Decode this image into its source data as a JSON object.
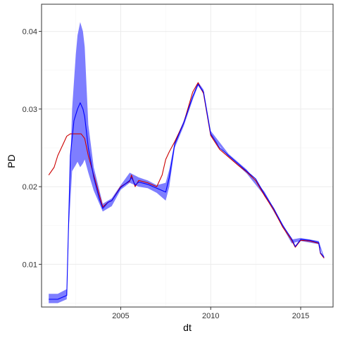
{
  "chart_data": {
    "type": "line",
    "title": "",
    "xlabel": "dt",
    "ylabel": "PD",
    "xlim": [
      2000.6,
      2016.8
    ],
    "ylim": [
      0.0045,
      0.0435
    ],
    "x_ticks": [
      2005,
      2010,
      2015
    ],
    "x_tick_labels": [
      "2005",
      "2010",
      "2015"
    ],
    "y_ticks": [
      0.01,
      0.02,
      0.03,
      0.04
    ],
    "y_tick_labels": [
      "0.01",
      "0.02",
      "0.03",
      "0.04"
    ],
    "grid": true,
    "legend": "none",
    "colors": {
      "band": "#7777ff",
      "estimate": "#0000ff",
      "reference": "#cc0000",
      "panel_border": "#333333",
      "grid_major": "#ebebeb",
      "grid_minor": "#f5f5f5"
    },
    "band": {
      "name": "",
      "x": [
        2001.0,
        2001.5,
        2002.0,
        2002.1,
        2002.3,
        2002.5,
        2002.6,
        2002.75,
        2002.9,
        2003.0,
        2003.2,
        2003.5,
        2004.0,
        2004.5,
        2005.0,
        2005.5,
        2006.0,
        2006.5,
        2007.0,
        2007.5,
        2007.7,
        2008.0,
        2008.5,
        2009.0,
        2009.3,
        2009.6,
        2010.0,
        2011.0,
        2012.0,
        2013.0,
        2014.0,
        2014.5,
        2015.0,
        2016.0,
        2016.3
      ],
      "upper": [
        0.0062,
        0.0062,
        0.0068,
        0.0155,
        0.03,
        0.037,
        0.0395,
        0.0412,
        0.04,
        0.038,
        0.028,
        0.0225,
        0.0178,
        0.0185,
        0.0202,
        0.0218,
        0.0212,
        0.0208,
        0.0202,
        0.0205,
        0.0222,
        0.0258,
        0.0285,
        0.0318,
        0.0335,
        0.0325,
        0.0272,
        0.0242,
        0.0222,
        0.0193,
        0.0152,
        0.0132,
        0.0134,
        0.013,
        0.011
      ],
      "lower": [
        0.005,
        0.005,
        0.0055,
        0.014,
        0.022,
        0.0228,
        0.0232,
        0.0225,
        0.023,
        0.0235,
        0.0218,
        0.0195,
        0.0168,
        0.0175,
        0.0196,
        0.0205,
        0.02,
        0.0198,
        0.0192,
        0.0182,
        0.02,
        0.025,
        0.0278,
        0.0312,
        0.033,
        0.032,
        0.0266,
        0.0238,
        0.0217,
        0.0188,
        0.0148,
        0.0127,
        0.013,
        0.0126,
        0.0107
      ]
    },
    "series": [
      {
        "name": "",
        "role": "estimate",
        "x": [
          2001.0,
          2001.5,
          2002.0,
          2002.2,
          2002.4,
          2002.6,
          2002.75,
          2002.9,
          2003.0,
          2003.2,
          2003.5,
          2003.8,
          2004.0,
          2004.3,
          2004.5,
          2005.0,
          2005.5,
          2005.6,
          2005.8,
          2006.0,
          2006.5,
          2007.0,
          2007.5,
          2007.7,
          2008.0,
          2008.5,
          2009.0,
          2009.3,
          2009.6,
          2010.0,
          2010.5,
          2011.0,
          2011.5,
          2012.0,
          2012.5,
          2013.0,
          2013.5,
          2014.0,
          2014.5,
          2014.7,
          2015.0,
          2015.5,
          2016.0,
          2016.1,
          2016.3
        ],
        "y": [
          0.0055,
          0.0055,
          0.006,
          0.024,
          0.0285,
          0.03,
          0.0308,
          0.03,
          0.029,
          0.025,
          0.0212,
          0.0185,
          0.0172,
          0.018,
          0.0182,
          0.0199,
          0.0208,
          0.0212,
          0.0202,
          0.0206,
          0.0203,
          0.0198,
          0.0193,
          0.0212,
          0.0255,
          0.0282,
          0.0316,
          0.0332,
          0.0322,
          0.0268,
          0.025,
          0.024,
          0.023,
          0.022,
          0.021,
          0.019,
          0.0172,
          0.015,
          0.0133,
          0.0123,
          0.0132,
          0.0131,
          0.0128,
          0.0115,
          0.0109
        ]
      },
      {
        "name": "",
        "role": "reference",
        "x": [
          2001.0,
          2001.3,
          2001.5,
          2001.8,
          2002.0,
          2002.2,
          2002.5,
          2002.8,
          2003.0,
          2003.2,
          2003.5,
          2003.8,
          2004.0,
          2004.3,
          2004.5,
          2005.0,
          2005.5,
          2005.6,
          2005.8,
          2006.0,
          2006.5,
          2007.0,
          2007.3,
          2007.5,
          2007.7,
          2008.0,
          2008.5,
          2009.0,
          2009.3,
          2009.6,
          2010.0,
          2010.5,
          2011.0,
          2011.5,
          2012.0,
          2012.5,
          2013.0,
          2013.5,
          2014.0,
          2014.5,
          2014.7,
          2015.0,
          2015.5,
          2016.0,
          2016.1,
          2016.3
        ],
        "y": [
          0.0215,
          0.0225,
          0.024,
          0.0255,
          0.0265,
          0.0268,
          0.0268,
          0.0268,
          0.0262,
          0.024,
          0.0215,
          0.019,
          0.0174,
          0.018,
          0.0182,
          0.02,
          0.0207,
          0.0215,
          0.02,
          0.0208,
          0.0205,
          0.02,
          0.0215,
          0.0235,
          0.0245,
          0.0258,
          0.0282,
          0.0322,
          0.0334,
          0.032,
          0.0266,
          0.0248,
          0.0238,
          0.0228,
          0.0219,
          0.0208,
          0.0188,
          0.017,
          0.0148,
          0.0131,
          0.0122,
          0.0131,
          0.013,
          0.0127,
          0.0114,
          0.0108
        ]
      }
    ]
  }
}
